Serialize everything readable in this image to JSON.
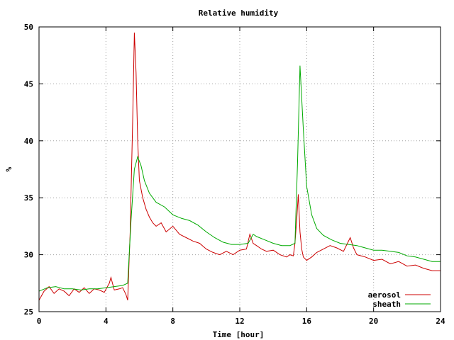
{
  "chart_data": {
    "type": "line",
    "title": "Relative humidity",
    "xlabel": "Time [hour]",
    "ylabel": "%",
    "xlim": [
      0,
      24
    ],
    "ylim": [
      25,
      50
    ],
    "xticks": [
      0,
      4,
      8,
      12,
      16,
      20,
      24
    ],
    "yticks": [
      25,
      30,
      35,
      40,
      45,
      50
    ],
    "grid": true,
    "legend_position": "bottom-right",
    "series": [
      {
        "name": "aerosol",
        "color": "#cc0000",
        "x": [
          0,
          0.3,
          0.6,
          0.9,
          1.2,
          1.5,
          1.8,
          2.1,
          2.4,
          2.7,
          3.0,
          3.3,
          3.6,
          3.9,
          4.2,
          4.3,
          4.5,
          4.8,
          5.0,
          5.2,
          5.3,
          5.45,
          5.6,
          5.7,
          5.8,
          5.9,
          6.0,
          6.2,
          6.4,
          6.6,
          6.8,
          7.0,
          7.3,
          7.6,
          8.0,
          8.4,
          8.8,
          9.2,
          9.6,
          10.0,
          10.4,
          10.8,
          11.2,
          11.6,
          12.0,
          12.4,
          12.6,
          12.8,
          13.0,
          13.3,
          13.6,
          14.0,
          14.4,
          14.8,
          15.0,
          15.2,
          15.3,
          15.4,
          15.5,
          15.6,
          15.7,
          15.8,
          16.0,
          16.3,
          16.6,
          17.0,
          17.4,
          17.8,
          18.2,
          18.6,
          18.8,
          19.0,
          19.5,
          20.0,
          20.5,
          21.0,
          21.5,
          22.0,
          22.5,
          23.0,
          23.5,
          24.0
        ],
        "values": [
          26.0,
          26.8,
          27.2,
          26.6,
          27.0,
          26.8,
          26.4,
          27.0,
          26.7,
          27.1,
          26.6,
          27.0,
          26.9,
          26.7,
          27.5,
          28.0,
          26.9,
          27.0,
          27.1,
          26.5,
          26.0,
          32.0,
          42.0,
          49.5,
          46.0,
          40.0,
          36.5,
          35.0,
          34.0,
          33.3,
          32.8,
          32.5,
          32.8,
          32.0,
          32.5,
          31.8,
          31.5,
          31.2,
          31.0,
          30.5,
          30.2,
          30.0,
          30.3,
          30.0,
          30.4,
          30.5,
          31.8,
          31.0,
          30.8,
          30.5,
          30.3,
          30.4,
          30.0,
          29.8,
          30.0,
          29.9,
          31.0,
          33.0,
          35.3,
          32.0,
          30.5,
          29.8,
          29.5,
          29.8,
          30.2,
          30.5,
          30.8,
          30.6,
          30.3,
          31.5,
          30.6,
          30.0,
          29.8,
          29.5,
          29.6,
          29.2,
          29.4,
          29.0,
          29.1,
          28.8,
          28.6,
          28.6
        ]
      },
      {
        "name": "sheath",
        "color": "#00aa00",
        "x": [
          0,
          0.5,
          1.0,
          1.5,
          2.0,
          2.5,
          3.0,
          3.5,
          4.0,
          4.5,
          5.0,
          5.3,
          5.5,
          5.7,
          5.9,
          6.1,
          6.3,
          6.6,
          7.0,
          7.5,
          8.0,
          8.5,
          9.0,
          9.5,
          10.0,
          10.5,
          11.0,
          11.5,
          12.0,
          12.5,
          12.8,
          13.0,
          13.5,
          14.0,
          14.5,
          15.0,
          15.3,
          15.45,
          15.6,
          15.8,
          16.0,
          16.3,
          16.6,
          17.0,
          17.5,
          18.0,
          18.5,
          19.0,
          19.5,
          20.0,
          20.5,
          21.0,
          21.5,
          22.0,
          22.5,
          23.0,
          23.5,
          24.0
        ],
        "values": [
          26.8,
          27.1,
          27.2,
          27.0,
          27.0,
          26.9,
          27.0,
          27.0,
          27.1,
          27.2,
          27.3,
          27.5,
          33.0,
          37.5,
          38.6,
          37.8,
          36.5,
          35.4,
          34.6,
          34.2,
          33.5,
          33.2,
          33.0,
          32.6,
          32.0,
          31.5,
          31.1,
          30.9,
          30.9,
          31.0,
          31.8,
          31.6,
          31.3,
          31.0,
          30.8,
          30.8,
          31.0,
          38.0,
          46.6,
          41.0,
          36.0,
          33.5,
          32.3,
          31.7,
          31.3,
          31.0,
          30.9,
          30.8,
          30.6,
          30.4,
          30.4,
          30.3,
          30.2,
          29.9,
          29.8,
          29.6,
          29.4,
          29.4
        ]
      }
    ]
  }
}
